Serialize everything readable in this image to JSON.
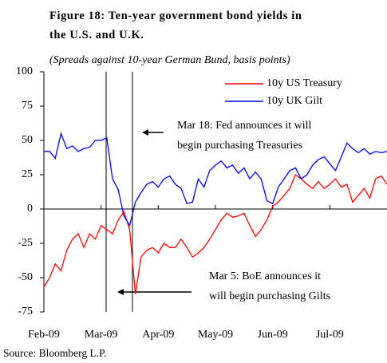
{
  "chart_data": {
    "type": "line",
    "title": [
      "Figure 18: Ten-year government bond yields in",
      "the U.S. and U.K."
    ],
    "subtitle": "(Spreads against 10-year German Bund, basis points)",
    "source": "Source: Bloomberg L.P.",
    "categories": [
      "Feb-09",
      null,
      null,
      null,
      null,
      null,
      null,
      null,
      null,
      null,
      "Mar-09",
      null,
      null,
      null,
      null,
      null,
      null,
      null,
      null,
      null,
      "Apr-09",
      null,
      null,
      null,
      null,
      null,
      null,
      null,
      null,
      null,
      "May-09",
      null,
      null,
      null,
      null,
      null,
      null,
      null,
      null,
      null,
      "Jun-09",
      null,
      null,
      null,
      null,
      null,
      null,
      null,
      null,
      null,
      "Jul-09",
      null,
      null,
      null,
      null,
      null,
      null,
      null,
      null,
      null,
      null
    ],
    "series": [
      {
        "name": "10y US Treasury",
        "color": "#ff0000",
        "values": [
          -57,
          -50,
          -40,
          -45,
          -30,
          -22,
          -18,
          -28,
          -18,
          -22,
          -12,
          -15,
          -18,
          -8,
          -2,
          -15,
          -62,
          -35,
          -30,
          -28,
          -32,
          -25,
          -28,
          -28,
          -22,
          -28,
          -35,
          -32,
          -28,
          -22,
          -15,
          -8,
          -3,
          -6,
          -5,
          -3,
          -12,
          -20,
          -15,
          -8,
          2,
          5,
          10,
          15,
          25,
          22,
          18,
          15,
          20,
          15,
          18,
          22,
          16,
          18,
          5,
          10,
          15,
          8,
          22,
          24,
          18
        ]
      },
      {
        "name": "10y UK Gilt",
        "color": "#0000ff",
        "values": [
          42,
          42,
          37,
          55,
          44,
          46,
          42,
          44,
          45,
          50,
          50,
          52,
          22,
          14,
          -5,
          -12,
          5,
          12,
          18,
          20,
          16,
          22,
          24,
          18,
          15,
          4,
          5,
          22,
          16,
          28,
          32,
          35,
          30,
          32,
          26,
          30,
          22,
          27,
          22,
          6,
          4,
          16,
          22,
          28,
          30,
          22,
          25,
          32,
          36,
          38,
          33,
          28,
          38,
          48,
          44,
          41,
          44,
          40,
          42,
          41,
          42
        ]
      }
    ],
    "ylim": [
      -75,
      100
    ],
    "yticks": [
      -75,
      -50,
      -25,
      0,
      25,
      50,
      75,
      100
    ],
    "legend": "top-right",
    "annotations": [
      [
        "Mar 18: Fed announces it will",
        "begin purchasing Treasuries"
      ],
      [
        "Mar 5: BoE announces it",
        "will begin purchasing Gilts"
      ]
    ]
  }
}
